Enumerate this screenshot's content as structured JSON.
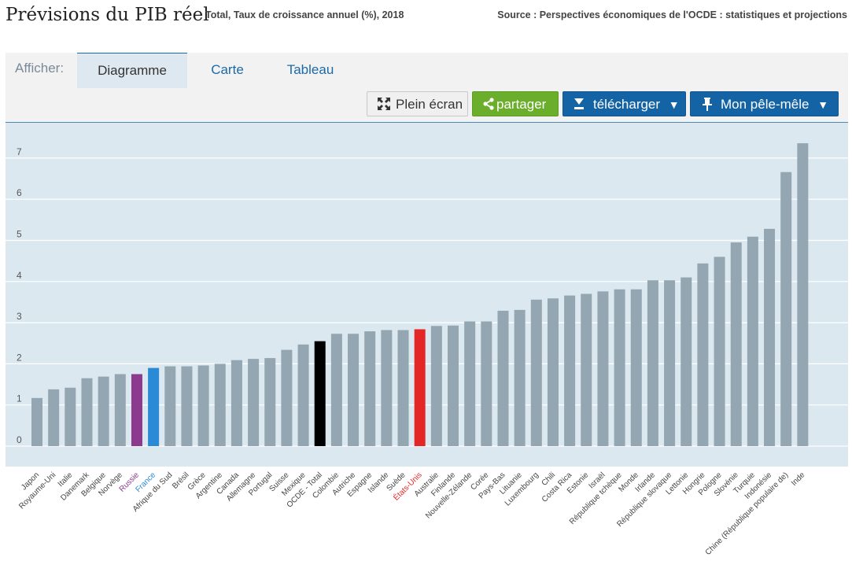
{
  "header": {
    "title": "Prévisions du PIB réel",
    "subtitle": "Total, Taux de croissance annuel (%), 2018",
    "source": "Source : Perspectives économiques de l'OCDE : statistiques et projections"
  },
  "toolbar": {
    "show_label": "Afficher:",
    "tabs": [
      {
        "label": "Diagramme",
        "active": true
      },
      {
        "label": "Carte",
        "active": false
      },
      {
        "label": "Tableau",
        "active": false
      }
    ],
    "fullscreen_label": "Plein écran",
    "share_label": "partager",
    "download_label": "télécharger",
    "dashboard_label": "Mon pêle-mêle"
  },
  "colors": {
    "bar_default": "#93a6b1",
    "bar_highlight_russia": "#8b3a8e",
    "bar_highlight_france": "#2a8ad6",
    "bar_highlight_oecd": "#000000",
    "bar_highlight_usa": "#e32727",
    "plot_background": "#dce8f0",
    "gridline": "#ffffff",
    "label_default": "#444444",
    "label_russia": "#8b3a8e",
    "label_france": "#2a8ad6",
    "label_usa": "#e32727"
  },
  "chart_data": {
    "type": "bar",
    "ylim": [
      0,
      7.6
    ],
    "yticks": [
      0,
      1,
      2,
      3,
      4,
      5,
      6,
      7
    ],
    "grid": true,
    "categories": [
      "Japon",
      "Royaume-Uni",
      "Italie",
      "Danemark",
      "Belgique",
      "Norvège",
      "Russie",
      "France",
      "Afrique du Sud",
      "Brésil",
      "Grèce",
      "Argentine",
      "Canada",
      "Allemagne",
      "Portugal",
      "Suisse",
      "Mexique",
      "OCDE - Total",
      "Colombie",
      "Autriche",
      "Espagne",
      "Islande",
      "Suède",
      "États-Unis",
      "Australie",
      "Finlande",
      "Nouvelle-Zélande",
      "Corée",
      "Pays-Bas",
      "Lituanie",
      "Luxembourg",
      "Chili",
      "Costa Rica",
      "Estonie",
      "Israël",
      "République tchèque",
      "Monde",
      "Irlande",
      "République slovaque",
      "Lettonie",
      "Hongrie",
      "Pologne",
      "Slovénie",
      "Turquie",
      "Indonésie",
      "Chine (République populaire de)",
      "Inde"
    ],
    "values": [
      1.17,
      1.38,
      1.42,
      1.65,
      1.69,
      1.75,
      1.75,
      1.9,
      1.94,
      1.94,
      1.96,
      2.0,
      2.09,
      2.12,
      2.14,
      2.34,
      2.47,
      2.55,
      2.73,
      2.73,
      2.79,
      2.82,
      2.82,
      2.84,
      2.92,
      2.93,
      3.03,
      3.03,
      3.29,
      3.31,
      3.56,
      3.59,
      3.66,
      3.7,
      3.76,
      3.81,
      3.81,
      4.03,
      4.03,
      4.1,
      4.44,
      4.6,
      4.95,
      5.09,
      5.28,
      6.66,
      7.36
    ],
    "highlights": {
      "Russie": "russia",
      "France": "france",
      "OCDE - Total": "oecd",
      "États-Unis": "usa"
    }
  }
}
